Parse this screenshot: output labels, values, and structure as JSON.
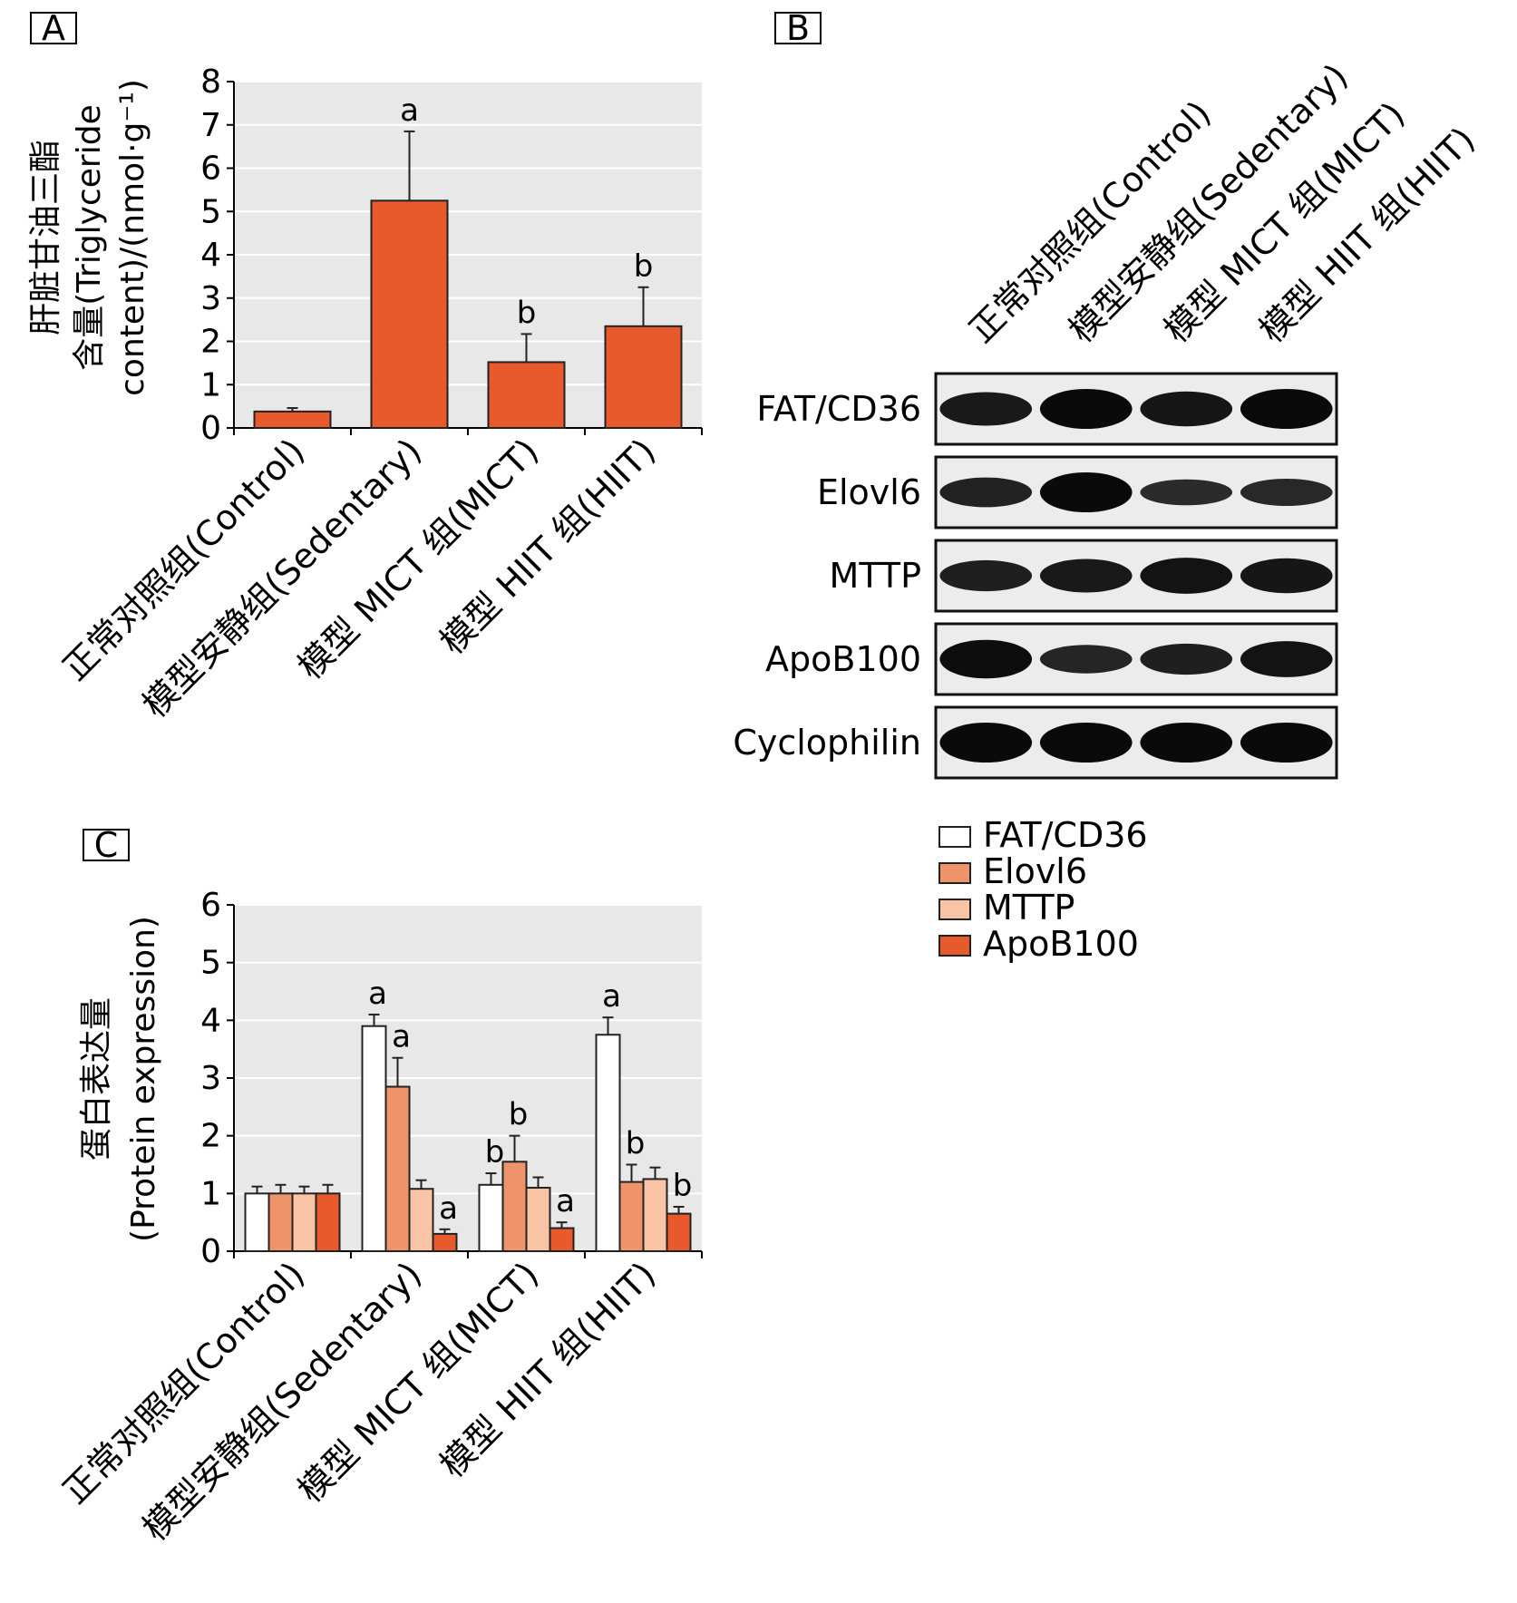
{
  "panels": {
    "A": {
      "letter": "A",
      "ylabel_lines": [
        "肝脏甘油三酯",
        "含量(Triglyceride",
        "content)/(nmol·g⁻¹)"
      ],
      "chart_data": {
        "type": "bar",
        "categories": [
          "正常对照组(Control)",
          "模型安静组(Sedentary)",
          "模型 MICT 组(MICT)",
          "模型 HIIT 组(HIIT)"
        ],
        "series": [
          {
            "values": [
              0.38,
              5.25,
              1.52,
              2.35
            ],
            "errors": [
              0.08,
              1.6,
              0.65,
              0.9
            ]
          }
        ],
        "significance": [
          "",
          "a",
          "b",
          "b"
        ],
        "ylim": [
          0,
          8
        ],
        "yticks": [
          "0",
          "1",
          "2",
          "3",
          "4",
          "5",
          "6",
          "7",
          "8"
        ],
        "grid": true,
        "color": "#e85a2b",
        "plot_bg": "#e8e8e8"
      }
    },
    "B": {
      "letter": "B",
      "lanes": [
        "正常对照组(Control)",
        "模型安静组(Sedentary)",
        "模型 MICT 组(MICT)",
        "模型 HIIT 组(HIIT)"
      ],
      "blots": [
        {
          "label": "FAT/CD36",
          "intensity": [
            0.75,
            1.0,
            0.8,
            1.0
          ]
        },
        {
          "label": "Elovl6",
          "intensity": [
            0.6,
            1.0,
            0.45,
            0.5
          ]
        },
        {
          "label": "MTTP",
          "intensity": [
            0.65,
            0.75,
            0.85,
            0.8
          ]
        },
        {
          "label": "ApoB100",
          "intensity": [
            0.95,
            0.55,
            0.65,
            0.85
          ]
        },
        {
          "label": "Cyclophilin",
          "intensity": [
            1.0,
            1.0,
            1.0,
            1.0
          ]
        }
      ]
    },
    "C": {
      "letter": "C",
      "ylabel_lines": [
        "蛋白表达量",
        "(Protein expression)"
      ],
      "chart_data": {
        "type": "bar",
        "categories": [
          "正常对照组(Control)",
          "模型安静组(Sedentary)",
          "模型 MICT 组(MICT)",
          "模型 HIIT 组(HIIT)"
        ],
        "series": [
          {
            "name": "FAT/CD36",
            "color": "#ffffff",
            "values": [
              1.0,
              3.9,
              1.15,
              3.75
            ],
            "errors": [
              0.12,
              0.2,
              0.2,
              0.3
            ],
            "sig": [
              "",
              "a",
              "b",
              "a"
            ]
          },
          {
            "name": "Elovl6",
            "color": "#ef946a",
            "values": [
              1.0,
              2.85,
              1.55,
              1.2
            ],
            "errors": [
              0.15,
              0.5,
              0.45,
              0.3
            ],
            "sig": [
              "",
              "a",
              "b",
              "b"
            ]
          },
          {
            "name": "MTTP",
            "color": "#f9c3a6",
            "values": [
              1.0,
              1.08,
              1.1,
              1.25
            ],
            "errors": [
              0.12,
              0.15,
              0.18,
              0.2
            ],
            "sig": [
              "",
              "",
              "",
              ""
            ]
          },
          {
            "name": "ApoB100",
            "color": "#e85a2b",
            "values": [
              1.0,
              0.3,
              0.4,
              0.65
            ],
            "errors": [
              0.15,
              0.08,
              0.1,
              0.12
            ],
            "sig": [
              "",
              "a",
              "a",
              "b"
            ]
          }
        ],
        "ylim": [
          0,
          6
        ],
        "yticks": [
          "0",
          "1",
          "2",
          "3",
          "4",
          "5",
          "6"
        ],
        "grid": true,
        "plot_bg": "#e8e8e8",
        "legend_position": "right"
      }
    }
  }
}
